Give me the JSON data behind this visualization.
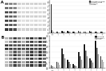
{
  "panel_a": {
    "n_bands": 7,
    "n_lanes": 10,
    "bar_groups": [
      "Ctrl",
      "2",
      "3",
      "4",
      "5",
      "6",
      "7",
      "8",
      "9",
      "10"
    ],
    "series": [
      {
        "label": "Anti-phospho-FAM83B",
        "color": "#111111",
        "values": [
          7.5,
          0.4,
          0.5,
          0.5,
          0.4,
          0.5,
          0.4,
          0.5,
          0.4,
          0.4
        ]
      },
      {
        "label": "Anti-total-FAM83B",
        "color": "#444444",
        "values": [
          0.7,
          0.3,
          0.4,
          0.4,
          0.3,
          0.4,
          0.3,
          0.4,
          0.3,
          0.3
        ]
      },
      {
        "label": "Anti-pS-CK1",
        "color": "#888888",
        "values": [
          0.4,
          0.2,
          0.3,
          0.3,
          0.2,
          0.3,
          0.2,
          0.3,
          0.2,
          0.2
        ]
      },
      {
        "label": "Anti-total",
        "color": "#cccccc",
        "values": [
          0.2,
          0.15,
          0.2,
          0.2,
          0.15,
          0.2,
          0.15,
          0.2,
          0.15,
          0.15
        ]
      }
    ],
    "ylim": [
      0,
      8.5
    ],
    "gel_bg": "#d8d8d8",
    "band_colors": [
      "#222222",
      "#333333",
      "#444444",
      "#555555",
      "#444444",
      "#333333",
      "#222222"
    ],
    "band_lane_intensities_a": [
      [
        0.85,
        0.8,
        0.75,
        0.2,
        0.18,
        0.2,
        0.18,
        0.2,
        0.18,
        0.2
      ],
      [
        0.75,
        0.7,
        0.65,
        0.18,
        0.15,
        0.18,
        0.15,
        0.18,
        0.15,
        0.18
      ],
      [
        0.8,
        0.75,
        0.7,
        0.15,
        0.12,
        0.15,
        0.12,
        0.15,
        0.12,
        0.15
      ],
      [
        0.7,
        0.65,
        0.6,
        0.2,
        0.18,
        0.2,
        0.18,
        0.2,
        0.18,
        0.2
      ],
      [
        0.75,
        0.7,
        0.65,
        0.18,
        0.15,
        0.18,
        0.15,
        0.18,
        0.15,
        0.18
      ],
      [
        0.6,
        0.55,
        0.5,
        0.15,
        0.12,
        0.15,
        0.12,
        0.15,
        0.12,
        0.15
      ],
      [
        0.55,
        0.5,
        0.45,
        0.2,
        0.18,
        0.2,
        0.18,
        0.2,
        0.18,
        0.2
      ]
    ]
  },
  "panel_b": {
    "n_bands": 9,
    "n_lanes": 10,
    "bar_groups": [
      "Ctrl",
      "2",
      "3",
      "4",
      "5",
      "6",
      "7",
      "8",
      "9",
      "10"
    ],
    "series": [
      {
        "label": "Anti-FAM83B",
        "color": "#111111",
        "values": [
          0.3,
          0.6,
          1.8,
          0.8,
          0.4,
          1.5,
          2.2,
          0.9,
          2.5,
          1.1
        ]
      },
      {
        "label": "Anti-phospho",
        "color": "#666666",
        "values": [
          0.2,
          0.5,
          1.3,
          0.6,
          0.3,
          1.1,
          1.6,
          0.7,
          1.9,
          0.8
        ]
      },
      {
        "label": "Anti-total",
        "color": "#aaaaaa",
        "values": [
          0.15,
          0.35,
          0.9,
          0.4,
          0.2,
          0.8,
          1.1,
          0.5,
          1.3,
          0.6
        ]
      }
    ],
    "ylim": [
      0,
      3.0
    ],
    "gel_bg": "#c8c8c8",
    "band_lane_intensities_b": [
      [
        0.3,
        0.5,
        0.8,
        0.6,
        0.4,
        0.7,
        0.85,
        0.55,
        0.9,
        0.65
      ],
      [
        0.25,
        0.45,
        0.75,
        0.55,
        0.35,
        0.65,
        0.8,
        0.5,
        0.85,
        0.6
      ],
      [
        0.28,
        0.48,
        0.78,
        0.58,
        0.38,
        0.68,
        0.82,
        0.52,
        0.88,
        0.62
      ],
      [
        0.35,
        0.55,
        0.85,
        0.65,
        0.45,
        0.75,
        0.88,
        0.58,
        0.92,
        0.68
      ],
      [
        0.2,
        0.4,
        0.7,
        0.5,
        0.3,
        0.6,
        0.78,
        0.48,
        0.82,
        0.58
      ],
      [
        0.85,
        0.8,
        0.75,
        0.78,
        0.7,
        0.8,
        0.82,
        0.75,
        0.85,
        0.78
      ],
      [
        0.8,
        0.75,
        0.7,
        0.72,
        0.65,
        0.75,
        0.78,
        0.7,
        0.8,
        0.72
      ],
      [
        0.25,
        0.45,
        0.75,
        0.55,
        0.35,
        0.65,
        0.8,
        0.5,
        0.85,
        0.6
      ],
      [
        0.3,
        0.5,
        0.8,
        0.6,
        0.4,
        0.7,
        0.85,
        0.55,
        0.9,
        0.65
      ]
    ]
  },
  "figure_bg": "#ffffff",
  "label_A": "A",
  "label_B": "B"
}
